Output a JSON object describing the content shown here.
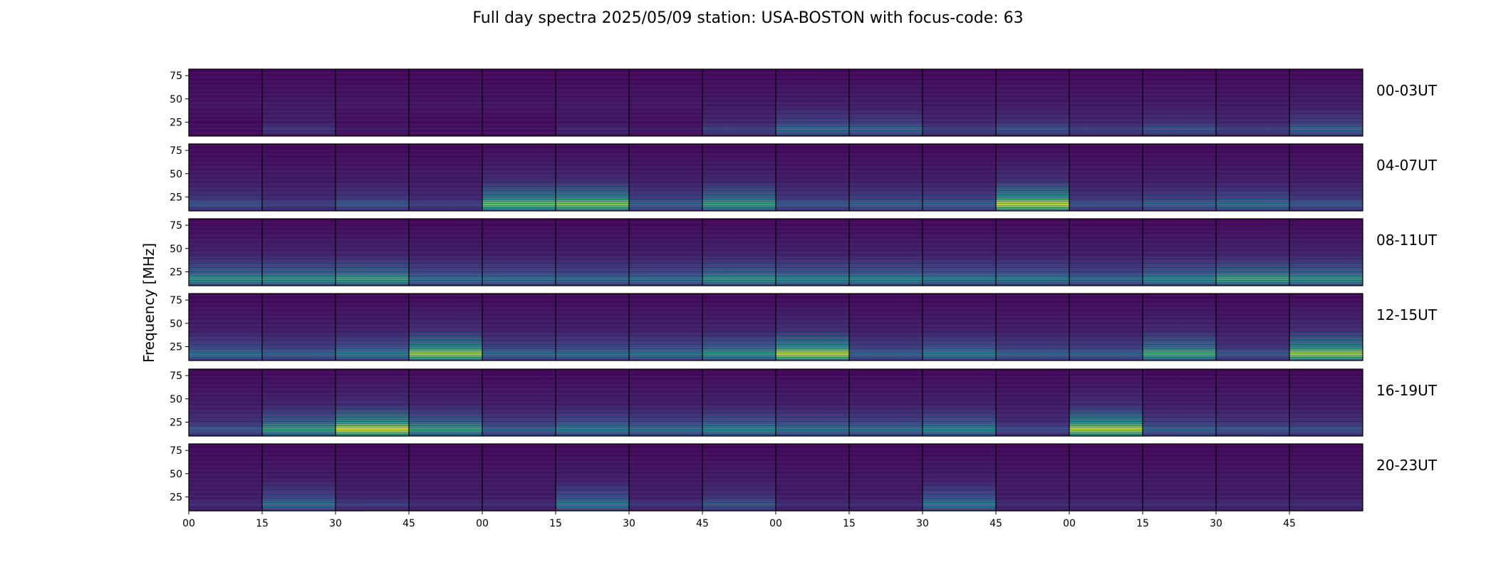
{
  "chart_data": {
    "type": "heatmap",
    "title": "Full day spectra 2025/05/09 station: USA-BOSTON with focus-code: 63",
    "ylabel": "Frequency [MHz]",
    "y_ticks": [
      "75",
      "50",
      "25"
    ],
    "x_ticks": [
      "00",
      "15",
      "30",
      "45",
      "00",
      "15",
      "30",
      "45",
      "00",
      "15",
      "30",
      "45",
      "00",
      "15",
      "30",
      "45"
    ],
    "row_labels": [
      "00-03UT",
      "04-07UT",
      "08-11UT",
      "12-15UT",
      "16-19UT",
      "20-23UT"
    ],
    "tiles_per_row": 16,
    "colormap": [
      "#440154",
      "#3b528b",
      "#21918c",
      "#5ec962",
      "#fde725"
    ],
    "intensity_rows": [
      [
        0.05,
        0.18,
        0.08,
        0.06,
        0.06,
        0.12,
        0.08,
        0.22,
        0.38,
        0.35,
        0.22,
        0.28,
        0.22,
        0.28,
        0.22,
        0.35
      ],
      [
        0.28,
        0.22,
        0.3,
        0.22,
        0.75,
        0.8,
        0.35,
        0.6,
        0.3,
        0.35,
        0.35,
        0.92,
        0.28,
        0.35,
        0.4,
        0.3
      ],
      [
        0.55,
        0.55,
        0.6,
        0.4,
        0.4,
        0.38,
        0.4,
        0.55,
        0.5,
        0.5,
        0.45,
        0.45,
        0.38,
        0.5,
        0.62,
        0.55
      ],
      [
        0.4,
        0.35,
        0.45,
        0.85,
        0.38,
        0.4,
        0.42,
        0.55,
        0.9,
        0.35,
        0.45,
        0.35,
        0.35,
        0.65,
        0.3,
        0.85
      ],
      [
        0.3,
        0.6,
        0.95,
        0.6,
        0.35,
        0.45,
        0.4,
        0.5,
        0.42,
        0.4,
        0.5,
        0.25,
        0.9,
        0.35,
        0.3,
        0.28
      ],
      [
        0.15,
        0.4,
        0.2,
        0.15,
        0.15,
        0.45,
        0.18,
        0.3,
        0.15,
        0.15,
        0.45,
        0.15,
        0.15,
        0.15,
        0.15,
        0.15
      ]
    ]
  }
}
